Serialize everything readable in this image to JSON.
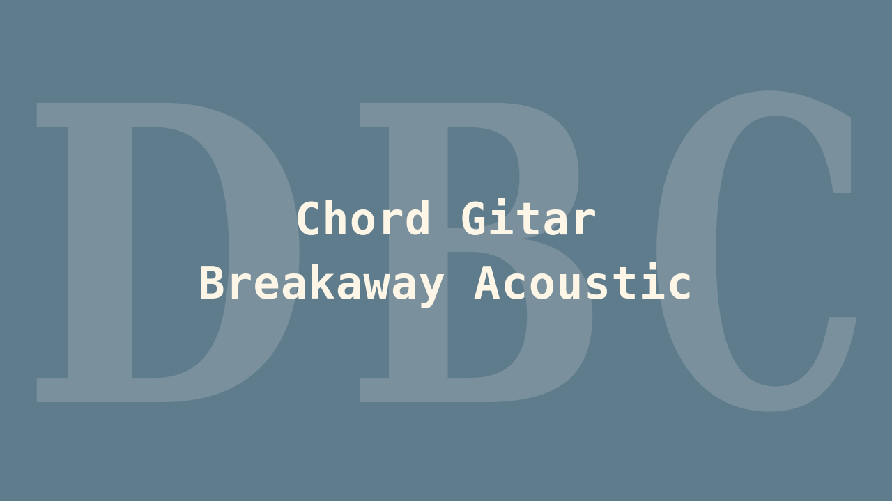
{
  "watermark": {
    "letters": [
      "D",
      "B",
      "C"
    ],
    "color": "#7a919d"
  },
  "title": {
    "line1": "Chord Gitar",
    "line2": "Breakaway Acoustic",
    "color": "#fdf6e6"
  },
  "background_color": "#5f7c8d"
}
